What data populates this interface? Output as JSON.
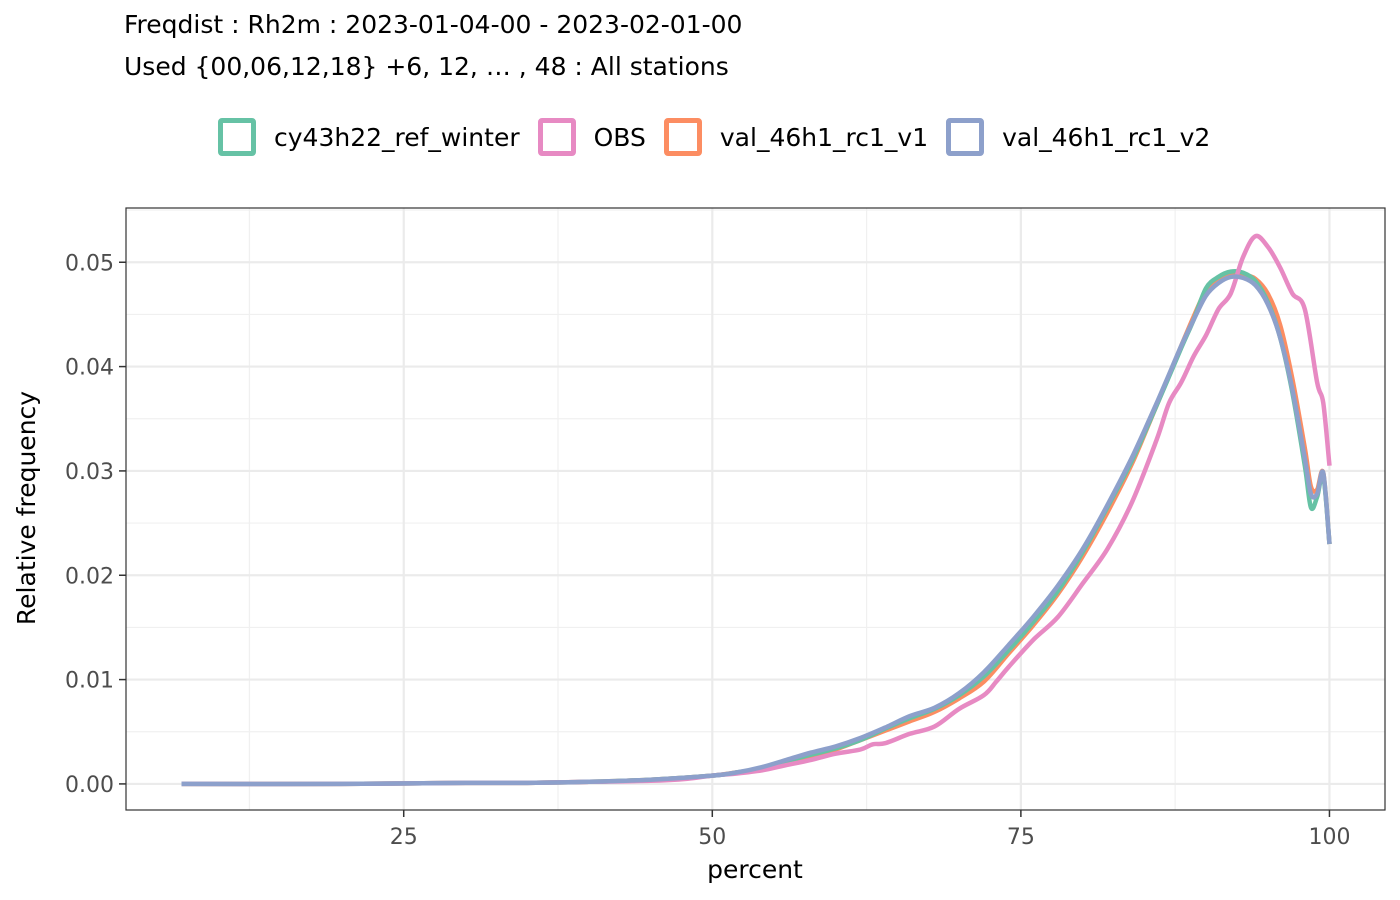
{
  "chart_data": {
    "type": "line",
    "title": "Freqdist : Rh2m : 2023-01-04-00 - 2023-02-01-00",
    "subtitle": "Used {00,06,12,18} +6, 12, … , 48 : All stations",
    "xlabel": "percent",
    "ylabel": "Relative frequency",
    "xlim": [
      2.5,
      104.5
    ],
    "ylim": [
      -0.0025,
      0.0552
    ],
    "x_ticks": [
      25,
      50,
      75,
      100
    ],
    "x_tick_labels": [
      "25",
      "50",
      "75",
      "100"
    ],
    "y_ticks": [
      0,
      0.01,
      0.02,
      0.03,
      0.04,
      0.05
    ],
    "y_tick_labels": [
      "0.00",
      "0.01",
      "0.02",
      "0.03",
      "0.04",
      "0.05"
    ],
    "grid": true,
    "legend_position": "top",
    "series": [
      {
        "name": "cy43h22_ref_winter",
        "color": "#66c2a5",
        "x": [
          7,
          20,
          30,
          35,
          40,
          45,
          50,
          52,
          54,
          56,
          58,
          60,
          62,
          64,
          66,
          68,
          70,
          72,
          74,
          76,
          78,
          80,
          82,
          84,
          86,
          88,
          89,
          90,
          91,
          92,
          93,
          94,
          95,
          96,
          97,
          98,
          98.5,
          99,
          99.5,
          100
        ],
        "values": [
          0,
          0,
          0.0001,
          0.0001,
          0.0002,
          0.0004,
          0.0008,
          0.0011,
          0.0015,
          0.0022,
          0.0028,
          0.0034,
          0.0042,
          0.0053,
          0.0063,
          0.0072,
          0.0085,
          0.0103,
          0.0128,
          0.0155,
          0.0185,
          0.0222,
          0.0265,
          0.031,
          0.0363,
          0.0418,
          0.0445,
          0.0475,
          0.0486,
          0.0491,
          0.049,
          0.0482,
          0.0462,
          0.0428,
          0.0375,
          0.0305,
          0.0265,
          0.0275,
          0.0295,
          0.023
        ]
      },
      {
        "name": "OBS",
        "color": "#e78ac3",
        "x": [
          7,
          20,
          30,
          35,
          40,
          45,
          48,
          50,
          52,
          54,
          56,
          58,
          60,
          62,
          63,
          64,
          66,
          68,
          70,
          72,
          73,
          74,
          76,
          78,
          80,
          82,
          84,
          86,
          87,
          88,
          89,
          90,
          91,
          92,
          93,
          94,
          95,
          96,
          97,
          98,
          99,
          99.5,
          100
        ],
        "values": [
          0,
          0,
          0.0001,
          0.0001,
          0.0002,
          0.0003,
          0.0005,
          0.0008,
          0.001,
          0.0013,
          0.0018,
          0.0023,
          0.0029,
          0.0033,
          0.0038,
          0.0039,
          0.0048,
          0.0055,
          0.0072,
          0.0085,
          0.0098,
          0.0112,
          0.0138,
          0.016,
          0.0192,
          0.0225,
          0.027,
          0.033,
          0.0365,
          0.0385,
          0.041,
          0.043,
          0.0455,
          0.047,
          0.0505,
          0.0525,
          0.0515,
          0.0495,
          0.047,
          0.0455,
          0.0385,
          0.0365,
          0.0305
        ]
      },
      {
        "name": "val_46h1_rc1_v1",
        "color": "#fc8d62",
        "x": [
          7,
          20,
          30,
          35,
          40,
          45,
          50,
          52,
          54,
          56,
          58,
          60,
          62,
          64,
          66,
          68,
          70,
          72,
          74,
          76,
          78,
          80,
          82,
          84,
          86,
          88,
          89,
          90,
          91,
          92,
          93,
          94,
          95,
          96,
          97,
          98,
          98.5,
          99,
          99.5,
          100
        ],
        "values": [
          0,
          0,
          0.0001,
          0.0001,
          0.0002,
          0.0004,
          0.0008,
          0.0011,
          0.0014,
          0.002,
          0.0026,
          0.0033,
          0.0042,
          0.0051,
          0.006,
          0.0069,
          0.0082,
          0.0098,
          0.0125,
          0.0152,
          0.0182,
          0.0218,
          0.026,
          0.0307,
          0.0363,
          0.042,
          0.0448,
          0.0473,
          0.0485,
          0.0488,
          0.0488,
          0.0484,
          0.047,
          0.044,
          0.0388,
          0.0322,
          0.0285,
          0.0282,
          0.0298,
          0.023
        ]
      },
      {
        "name": "val_46h1_rc1_v2",
        "color": "#8da0cb",
        "x": [
          7,
          20,
          30,
          35,
          40,
          45,
          50,
          52,
          54,
          56,
          58,
          60,
          62,
          64,
          66,
          68,
          70,
          72,
          74,
          76,
          78,
          80,
          82,
          84,
          86,
          88,
          89,
          90,
          91,
          92,
          93,
          94,
          95,
          96,
          97,
          98,
          98.5,
          99,
          99.5,
          100
        ],
        "values": [
          0,
          0,
          0.0001,
          0.0001,
          0.0002,
          0.0004,
          0.0008,
          0.0011,
          0.0016,
          0.0023,
          0.003,
          0.0036,
          0.0044,
          0.0054,
          0.0065,
          0.0073,
          0.0087,
          0.0107,
          0.0133,
          0.016,
          0.019,
          0.0225,
          0.0267,
          0.0313,
          0.0365,
          0.042,
          0.0445,
          0.0468,
          0.048,
          0.0486,
          0.0485,
          0.0478,
          0.046,
          0.0428,
          0.0378,
          0.0312,
          0.0278,
          0.0278,
          0.0298,
          0.023
        ]
      }
    ]
  }
}
